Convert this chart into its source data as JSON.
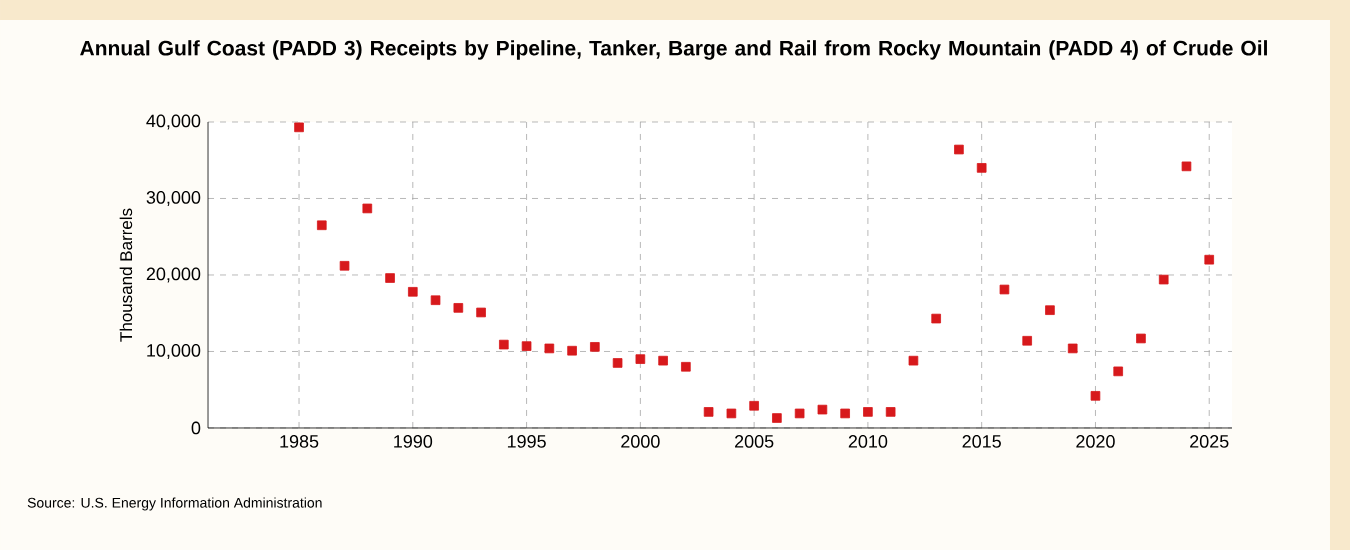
{
  "chart_data": {
    "type": "scatter",
    "title": "Annual Gulf Coast (PADD 3) Receipts by Pipeline, Tanker, Barge and Rail from Rocky Mountain (PADD 4) of Crude Oil",
    "ylabel": "Thousand Barrels",
    "x": [
      1985,
      1986,
      1987,
      1988,
      1989,
      1990,
      1991,
      1992,
      1993,
      1994,
      1995,
      1996,
      1997,
      1998,
      1999,
      2000,
      2001,
      2002,
      2003,
      2004,
      2005,
      2006,
      2007,
      2008,
      2009,
      2010,
      2011,
      2012,
      2013,
      2014,
      2015,
      2016,
      2017,
      2018,
      2019,
      2020,
      2021,
      2022,
      2023,
      2024,
      2025
    ],
    "values": [
      39300,
      26500,
      21200,
      28700,
      19600,
      17800,
      16700,
      15700,
      15100,
      10900,
      10700,
      10400,
      10100,
      10600,
      8500,
      9000,
      8800,
      8000,
      2100,
      1900,
      2900,
      1300,
      1900,
      2400,
      1900,
      2100,
      2100,
      8800,
      14300,
      36400,
      34000,
      18100,
      11400,
      15400,
      10400,
      4200,
      7400,
      11700,
      19400,
      34200,
      22000
    ],
    "color": "#d7191c",
    "marker": "square",
    "grid": true,
    "xlim": [
      1981,
      2026
    ],
    "xticks": [
      1985,
      1990,
      1995,
      2000,
      2005,
      2010,
      2015,
      2020,
      2025
    ],
    "ylim": [
      0,
      40000
    ],
    "yticks": [
      {
        "value": 0,
        "label": "0"
      },
      {
        "value": 10000,
        "label": "10,000"
      },
      {
        "value": 20000,
        "label": "20,000"
      },
      {
        "value": 30000,
        "label": "30,000"
      },
      {
        "value": 40000,
        "label": "40,000"
      }
    ],
    "annotations": [
      "Source: U.S. Energy Information Administration"
    ]
  }
}
